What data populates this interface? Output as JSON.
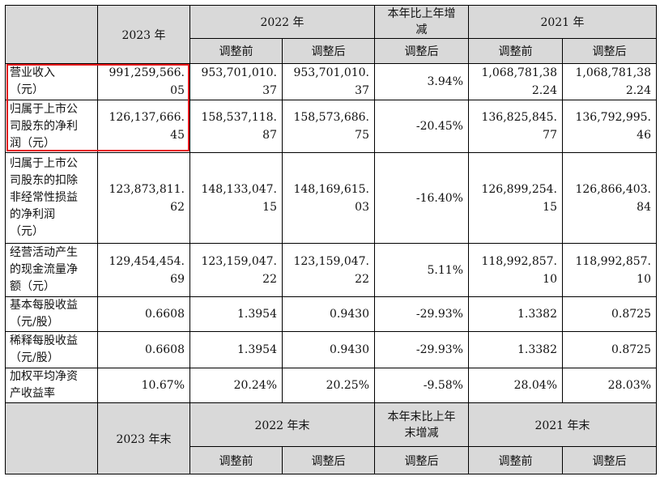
{
  "header": {
    "y2023": "2023 年",
    "y2022": "2022 年",
    "change_a": "本年比上年增",
    "change_b": "减",
    "y2021": "2021 年",
    "before": "调整前",
    "after": "调整后"
  },
  "rows": [
    {
      "label": [
        "营业收入",
        "（元）"
      ],
      "v2023": [
        "991,259,566.",
        "05"
      ],
      "v2022b": [
        "953,701,010.",
        "37"
      ],
      "v2022a": [
        "953,701,010.",
        "37"
      ],
      "chg": "3.94%",
      "v2021b": [
        "1,068,781,38",
        "2.24"
      ],
      "v2021a": [
        "1,068,781,38",
        "2.24"
      ]
    },
    {
      "label": [
        "归属于上市公",
        "司股东的净利",
        "润（元）"
      ],
      "v2023": [
        "126,137,666.",
        "45"
      ],
      "v2022b": [
        "158,537,118.",
        "87"
      ],
      "v2022a": [
        "158,573,686.",
        "75"
      ],
      "chg": "-20.45%",
      "v2021b": [
        "136,825,845.",
        "77"
      ],
      "v2021a": [
        "136,792,995.",
        "46"
      ]
    },
    {
      "label": [
        "归属于上市公",
        "司股东的扣除",
        "非经常性损益",
        "的净利润",
        "（元）"
      ],
      "v2023": [
        "123,873,811.",
        "62"
      ],
      "v2022b": [
        "148,133,047.",
        "15"
      ],
      "v2022a": [
        "148,169,615.",
        "03"
      ],
      "chg": "-16.40%",
      "v2021b": [
        "126,899,254.",
        "15"
      ],
      "v2021a": [
        "126,866,403.",
        "84"
      ]
    },
    {
      "label": [
        "经营活动产生",
        "的现金流量净",
        "额（元）"
      ],
      "v2023": [
        "129,454,454.",
        "69"
      ],
      "v2022b": [
        "123,159,047.",
        "22"
      ],
      "v2022a": [
        "123,159,047.",
        "22"
      ],
      "chg": "5.11%",
      "v2021b": [
        "118,992,857.",
        "10"
      ],
      "v2021a": [
        "118,992,857.",
        "10"
      ]
    },
    {
      "label": [
        "基本每股收益",
        "（元/股）"
      ],
      "v2023": [
        "0.6608"
      ],
      "v2022b": [
        "1.3954"
      ],
      "v2022a": [
        "0.9430"
      ],
      "chg": "-29.93%",
      "v2021b": [
        "1.3382"
      ],
      "v2021a": [
        "0.8725"
      ]
    },
    {
      "label": [
        "稀释每股收益",
        "（元/股）"
      ],
      "v2023": [
        "0.6608"
      ],
      "v2022b": [
        "1.3954"
      ],
      "v2022a": [
        "0.9430"
      ],
      "chg": "-29.93%",
      "v2021b": [
        "1.3382"
      ],
      "v2021a": [
        "0.8725"
      ]
    },
    {
      "label": [
        "加权平均净资",
        "产收益率"
      ],
      "v2023": [
        "10.67%"
      ],
      "v2022b": [
        "20.24%"
      ],
      "v2022a": [
        "20.25%"
      ],
      "chg": "-9.58%",
      "v2021b": [
        "28.04%"
      ],
      "v2021a": [
        "28.03%"
      ]
    }
  ],
  "footer": {
    "end2023": "2023 年末",
    "end2022": "2022 年末",
    "change_a": "本年末比上年",
    "change_b": "末增减",
    "end2021": "2021 年末",
    "before": "调整前",
    "after": "调整后"
  }
}
